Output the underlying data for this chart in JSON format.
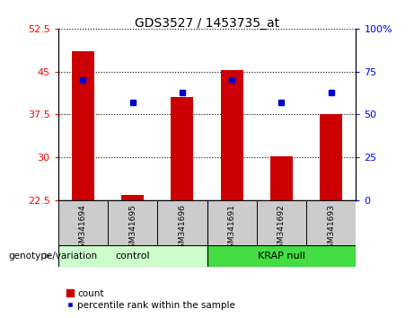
{
  "title": "GDS3527 / 1453735_at",
  "samples": [
    "GSM341694",
    "GSM341695",
    "GSM341696",
    "GSM341691",
    "GSM341692",
    "GSM341693"
  ],
  "bar_values": [
    48.5,
    23.5,
    40.5,
    45.2,
    30.2,
    37.5
  ],
  "dot_values_pct": [
    70,
    57,
    63,
    70,
    57,
    63
  ],
  "ylim_left": [
    22.5,
    52.5
  ],
  "ylim_right": [
    0,
    100
  ],
  "yticks_left": [
    22.5,
    30,
    37.5,
    45,
    52.5
  ],
  "ytick_labels_left": [
    "22.5",
    "30",
    "37.5",
    "45",
    "52.5"
  ],
  "yticks_right": [
    0,
    25,
    50,
    75,
    100
  ],
  "ytick_labels_right": [
    "0",
    "25",
    "50",
    "75",
    "100%"
  ],
  "bar_color": "#cc0000",
  "dot_color": "#0000cc",
  "bar_width": 0.45,
  "legend_bar_label": "count",
  "legend_dot_label": "percentile rank within the sample",
  "genotype_label": "genotype/variation",
  "control_bg": "#ccffcc",
  "krap_bg": "#44dd44",
  "sample_bg": "#cccccc",
  "control_label": "control",
  "krap_label": "KRAP null"
}
